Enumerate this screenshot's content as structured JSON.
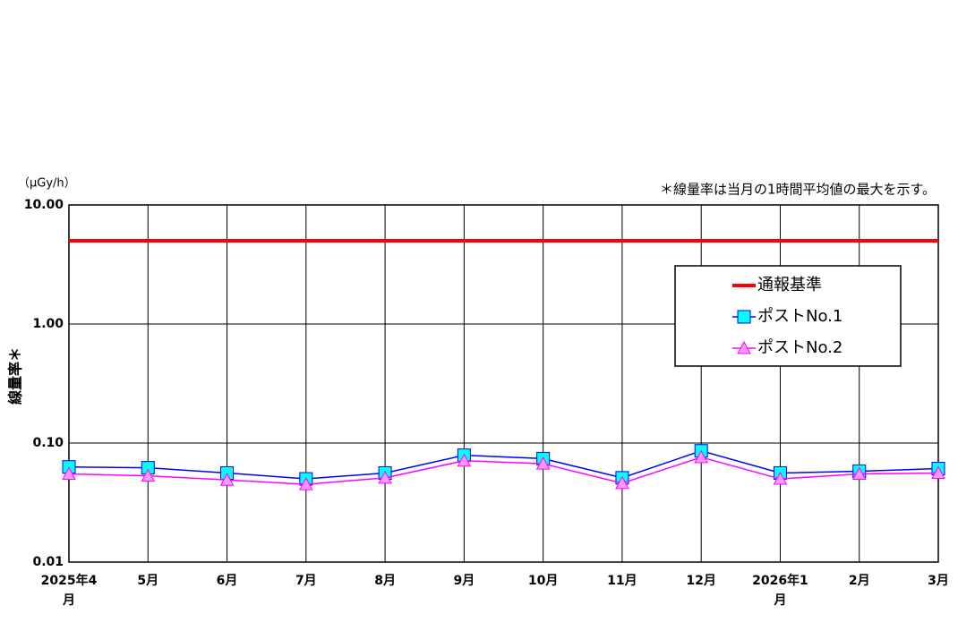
{
  "chart_data": {
    "type": "line",
    "unit_label": "（μGy/h）",
    "note": "＊線量率は当月の1時間平均値の最大を示す。",
    "y_label": "線量率＊",
    "categories": [
      "2025年4月",
      "5月",
      "6月",
      "7月",
      "8月",
      "9月",
      "10月",
      "11月",
      "12月",
      "2026年1月",
      "2月",
      "3月"
    ],
    "series": [
      {
        "name": "通報基準",
        "color": "#ff0000",
        "marker": "none",
        "values": [
          5,
          5,
          5,
          5,
          5,
          5,
          5,
          5,
          5,
          5,
          5,
          5
        ]
      },
      {
        "name": "ポストNo.1",
        "color": "#0000ff",
        "marker_color": "#00ffff",
        "marker": "square",
        "values": [
          0.063,
          0.062,
          0.056,
          0.05,
          0.056,
          0.079,
          0.074,
          0.051,
          0.086,
          0.056,
          0.058,
          0.061
        ]
      },
      {
        "name": "ポストNo.2",
        "color": "#ff00ff",
        "marker_color": "#ff99ff",
        "marker": "triangle",
        "values": [
          0.055,
          0.053,
          0.049,
          0.045,
          0.051,
          0.071,
          0.067,
          0.046,
          0.076,
          0.05,
          0.055,
          0.056
        ]
      }
    ],
    "ylim": [
      0.01,
      10
    ],
    "yticks": [
      0.01,
      {
        "value": 0.1,
        "label": "0.10"
      },
      {
        "value": 1,
        "label": "1.00"
      },
      {
        "value": 10,
        "label": "10.00"
      }
    ],
    "log_scale": true,
    "grid": true,
    "legend": "upper right"
  }
}
